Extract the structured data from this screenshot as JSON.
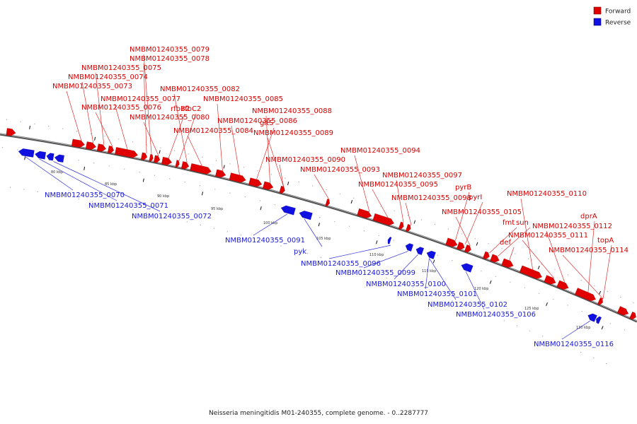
{
  "caption": "Neisseria meningitidis M01-240355, complete genome. - 0..2287777",
  "legend": [
    {
      "label": "Forward",
      "color": "#e00000"
    },
    {
      "label": "Reverse",
      "color": "#1010e0"
    }
  ],
  "colors": {
    "forward": "#e00000",
    "reverse": "#1010e0",
    "backbone": "#555555"
  },
  "scale_ticks": [
    "80 kbp",
    "85 kbp",
    "90 kbp",
    "95 kbp",
    "100 kbp",
    "105 kbp",
    "110 kbp",
    "115 kbp",
    "120 kbp",
    "125 kbp",
    "130 kbp"
  ],
  "forward_labels": [
    "NMBM01240355_0073",
    "NMBM01240355_0074",
    "NMBM01240355_0075",
    "NMBM01240355_0076",
    "NMBM01240355_0077",
    "NMBM01240355_0078",
    "NMBM01240355_0079",
    "NMBM01240355_0080",
    "rfbB2",
    "rfbC2",
    "NMBM01240355_0082",
    "NMBM01240355_0084",
    "NMBM01240355_0085",
    "NMBM01240355_0086",
    "gltS",
    "NMBM01240355_0088",
    "NMBM01240355_0089",
    "NMBM01240355_0090",
    "NMBM01240355_0093",
    "NMBM01240355_0094",
    "NMBM01240355_0095",
    "NMBM01240355_0097",
    "NMBM01240355_0098",
    "pyrB",
    "pyrI",
    "NMBM01240355_0105",
    "fmt",
    "sun",
    "def",
    "NMBM01240355_0110",
    "NMBM01240355_0111",
    "NMBM01240355_0112",
    "dprA",
    "topA",
    "NMBM01240355_0114"
  ],
  "reverse_labels": [
    "NMBM01240355_0070",
    "NMBM01240355_0071",
    "NMBM01240355_0072",
    "NMBM01240355_0091",
    "pyk",
    "NMBM01240355_0096",
    "NMBM01240355_0099",
    "NMBM01240355_0100",
    "NMBM01240355_0101",
    "NMBM01240355_0102",
    "NMBM01240355_0106",
    "NMBM01240355_0116"
  ]
}
